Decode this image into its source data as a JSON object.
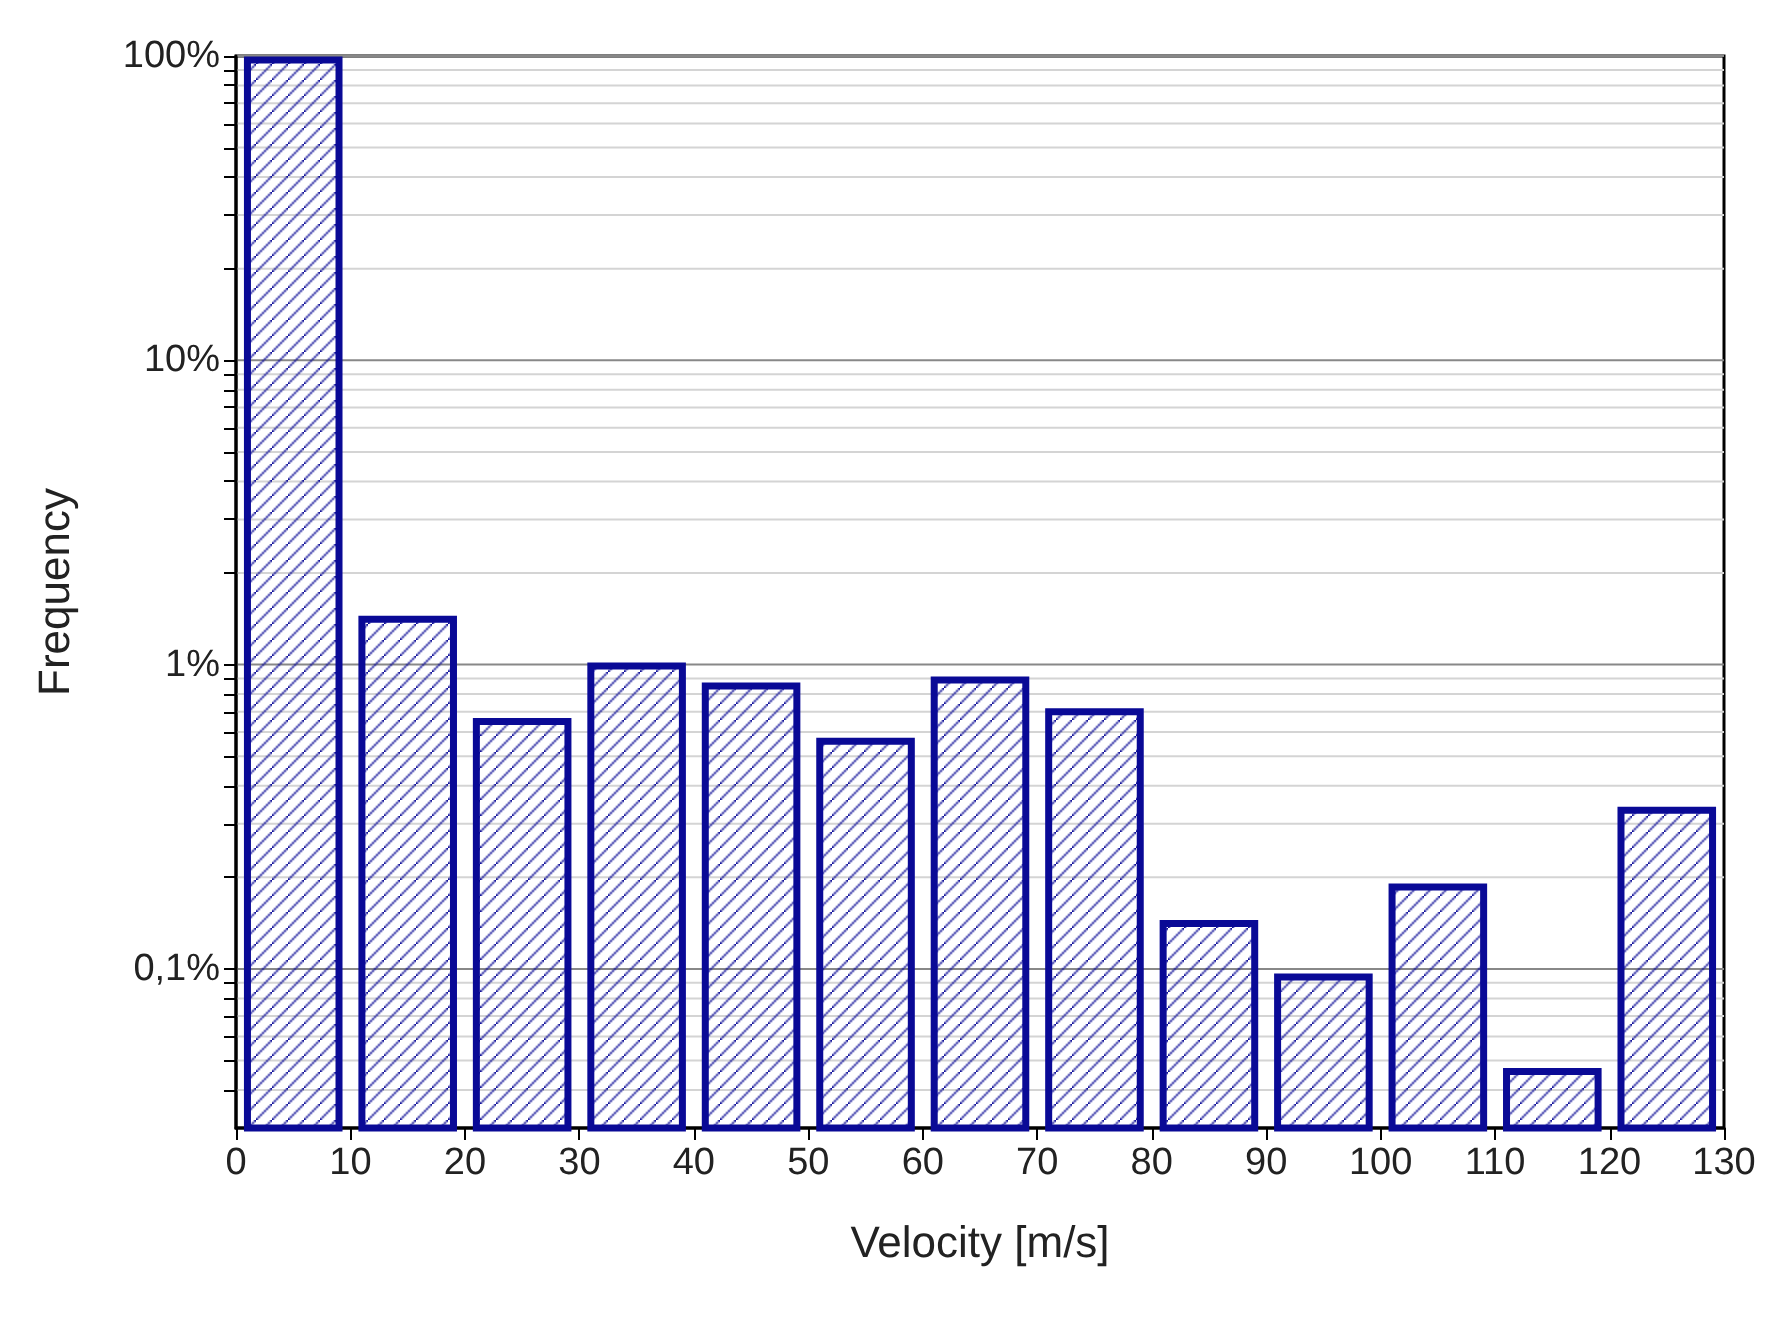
{
  "chart_data": {
    "type": "histogram",
    "xlabel": "Velocity [m/s]",
    "ylabel": "Frequency",
    "bins": [
      0,
      10,
      20,
      30,
      40,
      50,
      60,
      70,
      80,
      90,
      100,
      110,
      120,
      130
    ],
    "values": [
      97,
      1.41,
      0.65,
      0.99,
      0.85,
      0.56,
      0.89,
      0.7,
      0.141,
      0.094,
      0.186,
      0.046,
      0.332
    ],
    "color": "#0a0a96",
    "log": true,
    "grid": "y",
    "xlim": [
      0,
      130
    ],
    "xticks": [
      0,
      10,
      20,
      30,
      40,
      50,
      60,
      70,
      80,
      90,
      100,
      110,
      120,
      130
    ],
    "ylim": [
      0.03,
      100
    ],
    "yticks": [
      {
        "value": 0.04,
        "label": null
      },
      {
        "value": 0.05,
        "label": null
      },
      {
        "value": 0.06,
        "label": null
      },
      {
        "value": 0.07,
        "label": null
      },
      {
        "value": 0.08,
        "label": null
      },
      {
        "value": 0.09,
        "label": null
      },
      {
        "value": 0.1,
        "label": "0,1%"
      },
      {
        "value": 0.2,
        "label": null
      },
      {
        "value": 0.3,
        "label": null
      },
      {
        "value": 0.4,
        "label": null
      },
      {
        "value": 0.5,
        "label": null
      },
      {
        "value": 0.6,
        "label": null
      },
      {
        "value": 0.7,
        "label": null
      },
      {
        "value": 0.8,
        "label": null
      },
      {
        "value": 0.9,
        "label": null
      },
      {
        "value": 1,
        "label": "1%"
      },
      {
        "value": 2,
        "label": null
      },
      {
        "value": 3,
        "label": null
      },
      {
        "value": 4,
        "label": null
      },
      {
        "value": 5,
        "label": null
      },
      {
        "value": 6,
        "label": null
      },
      {
        "value": 7,
        "label": null
      },
      {
        "value": 8,
        "label": null
      },
      {
        "value": 9,
        "label": null
      },
      {
        "value": 10,
        "label": "10%"
      },
      {
        "value": 20,
        "label": null
      },
      {
        "value": 30,
        "label": null
      },
      {
        "value": 40,
        "label": null
      },
      {
        "value": 50,
        "label": null
      },
      {
        "value": 60,
        "label": null
      },
      {
        "value": 70,
        "label": null
      },
      {
        "value": 80,
        "label": null
      },
      {
        "value": 90,
        "label": null
      },
      {
        "value": 100,
        "label": "100%"
      }
    ]
  }
}
